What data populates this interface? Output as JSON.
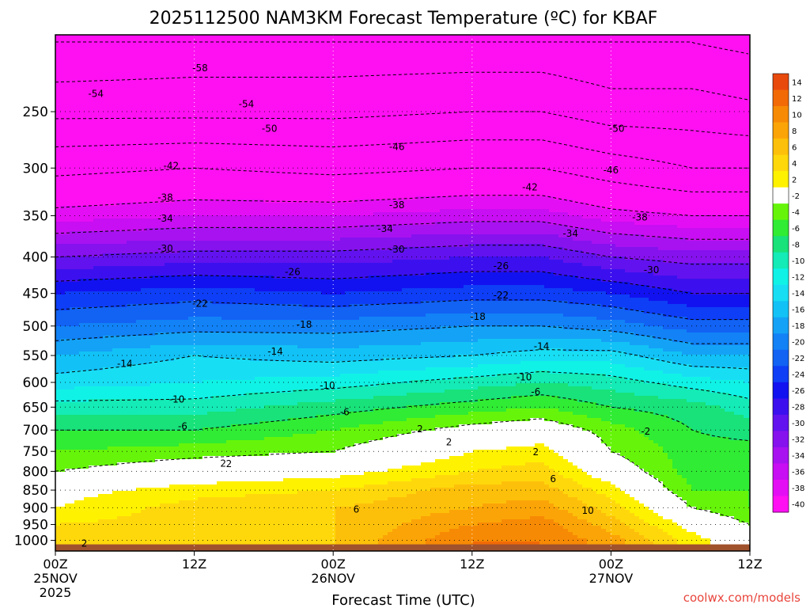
{
  "chart_data": {
    "type": "heatmap",
    "title": "2025112500 NAM3KM Forecast Temperature (ºC) for KBAF",
    "xlabel": "Forecast Time (UTC)",
    "ylabel": "",
    "credit": "coolwx.com/models",
    "x_ticks": [
      {
        "hour": 0,
        "label": [
          "00Z",
          "25NOV",
          "2025"
        ]
      },
      {
        "hour": 12,
        "label": [
          "12Z"
        ]
      },
      {
        "hour": 24,
        "label": [
          "00Z",
          "26NOV"
        ]
      },
      {
        "hour": 36,
        "label": [
          "12Z"
        ]
      },
      {
        "hour": 48,
        "label": [
          "00Z",
          "27NOV"
        ]
      },
      {
        "hour": 60,
        "label": [
          "12Z"
        ]
      }
    ],
    "xlim": [
      0,
      60
    ],
    "y_axis": {
      "scale": "log-pressure",
      "inverted": true,
      "ylim": [
        1035,
        195
      ],
      "ticks": [
        250,
        300,
        350,
        400,
        450,
        500,
        550,
        600,
        650,
        700,
        750,
        800,
        850,
        900,
        950,
        1000
      ]
    },
    "grid": true,
    "colorbar": {
      "placement": "right",
      "levels": [
        {
          "label": "14",
          "color": "#e84a0e"
        },
        {
          "label": "12",
          "color": "#f26a06"
        },
        {
          "label": "10",
          "color": "#f78a04"
        },
        {
          "label": "8",
          "color": "#fba407"
        },
        {
          "label": "6",
          "color": "#fdc00a"
        },
        {
          "label": "4",
          "color": "#ffd80c"
        },
        {
          "label": "2",
          "color": "#fff200"
        },
        {
          "label": "-2",
          "color": "#ffffff"
        },
        {
          "label": "-4",
          "color": "#66f50a"
        },
        {
          "label": "-6",
          "color": "#30ec34"
        },
        {
          "label": "-8",
          "color": "#18e279"
        },
        {
          "label": "-10",
          "color": "#14ebb6"
        },
        {
          "label": "-12",
          "color": "#10f2e6"
        },
        {
          "label": "-14",
          "color": "#18def4"
        },
        {
          "label": "-16",
          "color": "#12c2f6"
        },
        {
          "label": "-18",
          "color": "#14a2f6"
        },
        {
          "label": "-20",
          "color": "#1282f6"
        },
        {
          "label": "-22",
          "color": "#1262f4"
        },
        {
          "label": "-24",
          "color": "#0e3ef6"
        },
        {
          "label": "-26",
          "color": "#1212f0"
        },
        {
          "label": "-28",
          "color": "#3c10ee"
        },
        {
          "label": "-30",
          "color": "#6212ee"
        },
        {
          "label": "-32",
          "color": "#8612ee"
        },
        {
          "label": "-34",
          "color": "#a812f0"
        },
        {
          "label": "-36",
          "color": "#c80ef2"
        },
        {
          "label": "-38",
          "color": "#e40ef4"
        },
        {
          "label": "-40",
          "color": "#ff10f2"
        }
      ]
    },
    "ground_color": "#a0522d",
    "temperature_profiles": [
      {
        "hour": 0,
        "points": [
          [
            1000,
            4
          ],
          [
            950,
            4
          ],
          [
            900,
            2
          ],
          [
            850,
            1
          ],
          [
            800,
            -2
          ],
          [
            750,
            -4
          ],
          [
            700,
            -6
          ],
          [
            650,
            -9
          ],
          [
            600,
            -13
          ],
          [
            550,
            -16
          ],
          [
            500,
            -20
          ],
          [
            450,
            -24
          ],
          [
            400,
            -30
          ],
          [
            350,
            -37
          ],
          [
            300,
            -43
          ],
          [
            250,
            -51
          ],
          [
            200,
            -58
          ]
        ]
      },
      {
        "hour": 12,
        "points": [
          [
            1000,
            4
          ],
          [
            950,
            5
          ],
          [
            900,
            5
          ],
          [
            850,
            3
          ],
          [
            800,
            0
          ],
          [
            750,
            -3
          ],
          [
            700,
            -6
          ],
          [
            650,
            -9
          ],
          [
            600,
            -12
          ],
          [
            550,
            -14
          ],
          [
            500,
            -19
          ],
          [
            450,
            -23
          ],
          [
            400,
            -29
          ],
          [
            350,
            -36
          ],
          [
            300,
            -42
          ],
          [
            250,
            -51
          ],
          [
            200,
            -57
          ]
        ]
      },
      {
        "hour": 24,
        "points": [
          [
            1000,
            6
          ],
          [
            950,
            6
          ],
          [
            900,
            6
          ],
          [
            850,
            4
          ],
          [
            800,
            1
          ],
          [
            750,
            -2
          ],
          [
            700,
            -4
          ],
          [
            650,
            -7
          ],
          [
            600,
            -11
          ],
          [
            550,
            -15
          ],
          [
            500,
            -19
          ],
          [
            450,
            -24
          ],
          [
            400,
            -29
          ],
          [
            350,
            -36
          ],
          [
            300,
            -43
          ],
          [
            250,
            -51
          ],
          [
            200,
            -57
          ]
        ]
      },
      {
        "hour": 36,
        "points": [
          [
            1000,
            12
          ],
          [
            950,
            10
          ],
          [
            900,
            8
          ],
          [
            850,
            7
          ],
          [
            800,
            4
          ],
          [
            750,
            2
          ],
          [
            700,
            -1
          ],
          [
            650,
            -5
          ],
          [
            600,
            -9
          ],
          [
            550,
            -14
          ],
          [
            500,
            -18
          ],
          [
            450,
            -23
          ],
          [
            400,
            -28
          ],
          [
            350,
            -35
          ],
          [
            300,
            -42
          ],
          [
            250,
            -50
          ],
          [
            200,
            -57
          ]
        ]
      },
      {
        "hour": 42,
        "points": [
          [
            1000,
            12
          ],
          [
            950,
            11
          ],
          [
            900,
            9
          ],
          [
            850,
            7
          ],
          [
            800,
            5
          ],
          [
            750,
            3
          ],
          [
            700,
            0
          ],
          [
            650,
            -4
          ],
          [
            600,
            -8
          ],
          [
            550,
            -13
          ],
          [
            500,
            -18
          ],
          [
            450,
            -23
          ],
          [
            400,
            -28
          ],
          [
            350,
            -35
          ],
          [
            300,
            -42
          ],
          [
            250,
            -50
          ],
          [
            200,
            -57
          ]
        ]
      },
      {
        "hour": 48,
        "points": [
          [
            1000,
            9
          ],
          [
            950,
            7
          ],
          [
            900,
            5
          ],
          [
            850,
            3
          ],
          [
            800,
            0
          ],
          [
            750,
            -2
          ],
          [
            700,
            -3
          ],
          [
            650,
            -6
          ],
          [
            600,
            -9
          ],
          [
            550,
            -13
          ],
          [
            500,
            -19
          ],
          [
            450,
            -24
          ],
          [
            400,
            -30
          ],
          [
            350,
            -37
          ],
          [
            300,
            -44
          ],
          [
            250,
            -52
          ],
          [
            200,
            -58
          ]
        ]
      },
      {
        "hour": 55,
        "points": [
          [
            1000,
            3
          ],
          [
            950,
            1
          ],
          [
            900,
            -2
          ],
          [
            850,
            -4
          ],
          [
            800,
            -5
          ],
          [
            750,
            -5
          ],
          [
            700,
            -6
          ],
          [
            650,
            -7
          ],
          [
            600,
            -11
          ],
          [
            550,
            -16
          ],
          [
            500,
            -21
          ],
          [
            450,
            -26
          ],
          [
            400,
            -31
          ],
          [
            350,
            -38
          ],
          [
            300,
            -46
          ],
          [
            250,
            -52
          ],
          [
            200,
            -58
          ]
        ]
      },
      {
        "hour": 60,
        "points": [
          [
            1000,
            0
          ],
          [
            950,
            -2
          ],
          [
            900,
            -4
          ],
          [
            850,
            -4
          ],
          [
            800,
            -5
          ],
          [
            750,
            -5
          ],
          [
            700,
            -7
          ],
          [
            650,
            -9
          ],
          [
            600,
            -12
          ],
          [
            550,
            -16
          ],
          [
            500,
            -21
          ],
          [
            450,
            -26
          ],
          [
            400,
            -31
          ],
          [
            350,
            -38
          ],
          [
            300,
            -46
          ],
          [
            250,
            -53
          ],
          [
            200,
            -59
          ]
        ]
      }
    ],
    "contour_labels": [
      {
        "text": "-58",
        "hour": 12.5,
        "p": 217
      },
      {
        "text": "-54",
        "hour": 3.5,
        "p": 236
      },
      {
        "text": "-54",
        "hour": 16.5,
        "p": 244
      },
      {
        "text": "-50",
        "hour": 18.5,
        "p": 264
      },
      {
        "text": "-50",
        "hour": 48.5,
        "p": 264
      },
      {
        "text": "-46",
        "hour": 29.5,
        "p": 280
      },
      {
        "text": "-46",
        "hour": 48,
        "p": 302
      },
      {
        "text": "-42",
        "hour": 10,
        "p": 298
      },
      {
        "text": "-42",
        "hour": 41,
        "p": 319
      },
      {
        "text": "-38",
        "hour": 9.5,
        "p": 330
      },
      {
        "text": "-38",
        "hour": 29.5,
        "p": 338
      },
      {
        "text": "-38",
        "hour": 50.5,
        "p": 352
      },
      {
        "text": "-34",
        "hour": 9.5,
        "p": 353
      },
      {
        "text": "-34",
        "hour": 28.5,
        "p": 365
      },
      {
        "text": "-34",
        "hour": 44.5,
        "p": 371
      },
      {
        "text": "-30",
        "hour": 9.5,
        "p": 389
      },
      {
        "text": "-30",
        "hour": 29.5,
        "p": 390
      },
      {
        "text": "-30",
        "hour": 51.5,
        "p": 417
      },
      {
        "text": "-26",
        "hour": 20.5,
        "p": 420
      },
      {
        "text": "-26",
        "hour": 38.5,
        "p": 412
      },
      {
        "text": "-22",
        "hour": 12.5,
        "p": 465
      },
      {
        "text": "-22",
        "hour": 38.5,
        "p": 453
      },
      {
        "text": "-18",
        "hour": 21.5,
        "p": 498
      },
      {
        "text": "-18",
        "hour": 36.5,
        "p": 485
      },
      {
        "text": "-14",
        "hour": 6,
        "p": 565
      },
      {
        "text": "-14",
        "hour": 19,
        "p": 543
      },
      {
        "text": "-14",
        "hour": 42,
        "p": 534
      },
      {
        "text": "-10",
        "hour": 10.5,
        "p": 634
      },
      {
        "text": "-10",
        "hour": 23.5,
        "p": 606
      },
      {
        "text": "-10",
        "hour": 40.5,
        "p": 590
      },
      {
        "text": "-6",
        "hour": 11,
        "p": 692
      },
      {
        "text": "-6",
        "hour": 25,
        "p": 660
      },
      {
        "text": "-6",
        "hour": 41.5,
        "p": 619
      },
      {
        "text": "2",
        "hour": 14.5,
        "p": 780
      },
      {
        "text": "2",
        "hour": 34,
        "p": 728
      },
      {
        "text": "2",
        "hour": 41.5,
        "p": 752
      },
      {
        "text": "2",
        "hour": 15,
        "p": 781
      },
      {
        "text": "2",
        "hour": 31.5,
        "p": 698
      },
      {
        "text": "-2",
        "hour": 51,
        "p": 703
      },
      {
        "text": "6",
        "hour": 26,
        "p": 905
      },
      {
        "text": "6",
        "hour": 43,
        "p": 820
      },
      {
        "text": "10",
        "hour": 46,
        "p": 908
      },
      {
        "text": "2",
        "hour": 2.5,
        "p": 1010
      }
    ]
  }
}
